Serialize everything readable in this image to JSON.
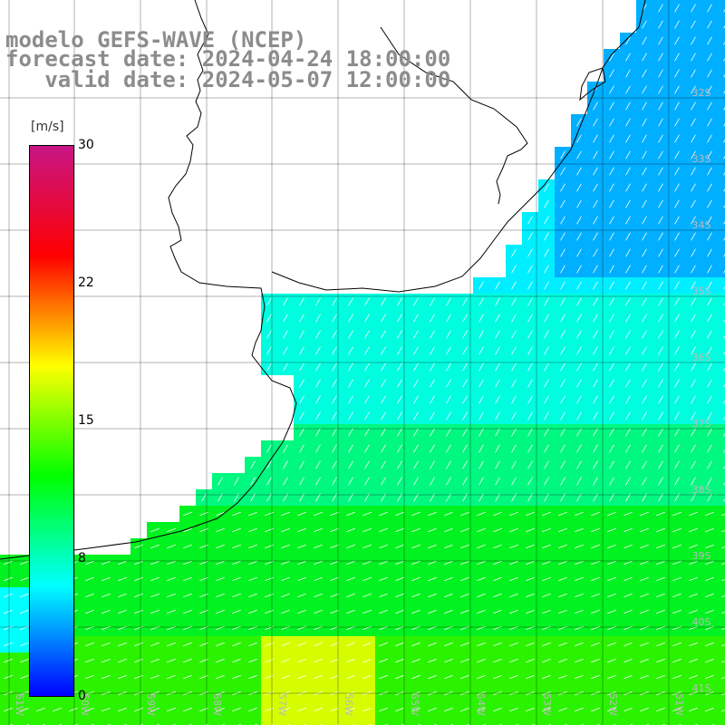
{
  "title": {
    "line1": "modelo GEFS-WAVE (NCEP)",
    "line2": "forecast date: 2024-04-24 18:00:00",
    "line3": "   valid date: 2024-05-07 12:00:00"
  },
  "colorbar": {
    "unit": "[m/s]",
    "ticks": [
      "30",
      "22",
      "15",
      "8",
      "0"
    ],
    "range": [
      0,
      30
    ],
    "colors": [
      "#0000ff",
      "#00ffff",
      "#00ff00",
      "#ffff00",
      "#ff0000",
      "#c71585"
    ]
  },
  "lat_labels": [
    "32S",
    "33S",
    "34S",
    "35S",
    "36S",
    "37S",
    "38S",
    "39S",
    "40S",
    "41S"
  ],
  "lon_labels": [
    "61W",
    "60W",
    "59W",
    "58W",
    "57W",
    "56W",
    "55W",
    "54W",
    "53W",
    "52W",
    "51W"
  ],
  "colors": {
    "land": "#ffffff",
    "coast": "#000000",
    "grid": "#000000",
    "arrow": "#ffffff"
  }
}
